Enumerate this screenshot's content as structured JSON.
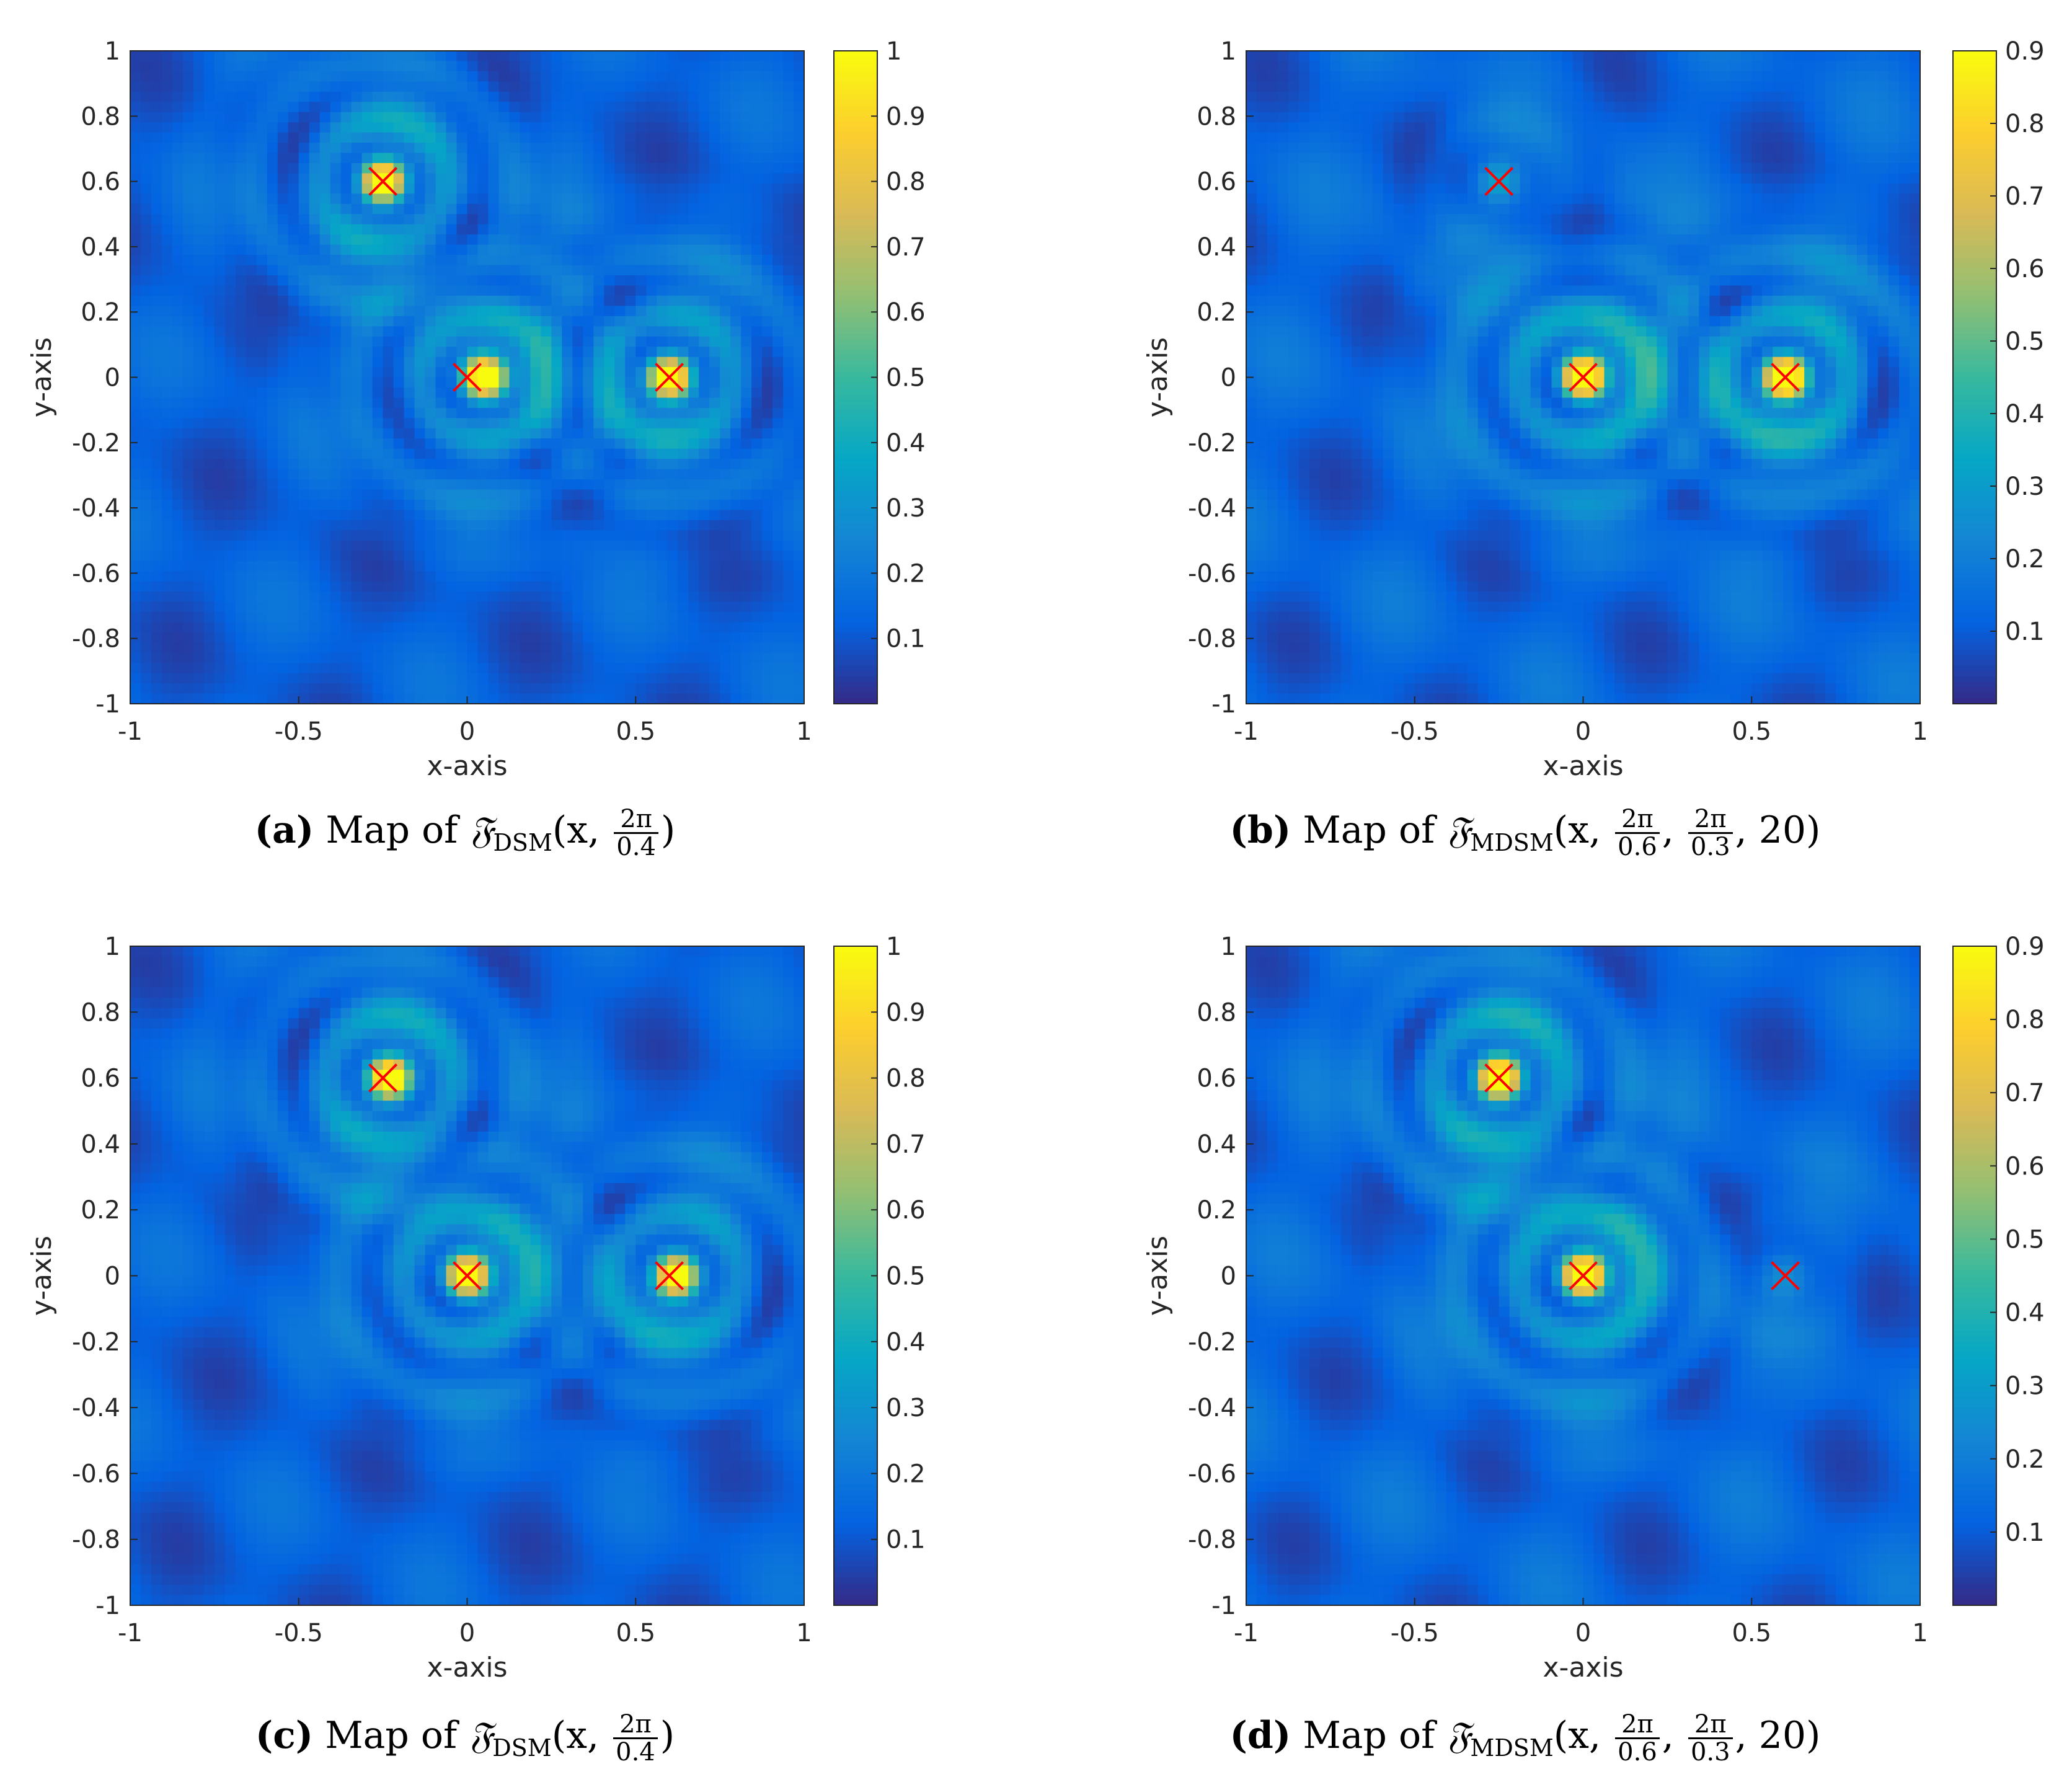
{
  "colorscale": {
    "name": "parula",
    "stops": [
      "#352a87",
      "#0363e1",
      "#1485d4",
      "#06a7c6",
      "#38b99e",
      "#92bf73",
      "#d9ba56",
      "#fcce2e",
      "#f9fb0e"
    ]
  },
  "chart_data": [
    {
      "id": "a",
      "type": "heatmap",
      "xlabel": "x-axis",
      "ylabel": "y-axis",
      "xlim": [
        -1,
        1
      ],
      "ylim": [
        -1,
        1
      ],
      "xticks": [
        "-1",
        "-0.5",
        "0",
        "0.5",
        "1"
      ],
      "yticks": [
        "1",
        "0.8",
        "0.6",
        "0.4",
        "0.2",
        "0",
        "-0.2",
        "-0.4",
        "-0.6",
        "-0.8",
        "-1"
      ],
      "colorbar": {
        "range": [
          0,
          1
        ],
        "ticks": [
          "1",
          "0.9",
          "0.8",
          "0.7",
          "0.6",
          "0.5",
          "0.4",
          "0.3",
          "0.2",
          "0.1"
        ]
      },
      "markers": [
        {
          "x": -0.25,
          "y": 0.6
        },
        {
          "x": 0.0,
          "y": 0.0
        },
        {
          "x": 0.6,
          "y": 0.0
        }
      ],
      "peaks": [
        {
          "x": -0.25,
          "y": 0.6,
          "v": 0.85
        },
        {
          "x": 0.05,
          "y": 0.0,
          "v": 0.85
        },
        {
          "x": 0.6,
          "y": 0.0,
          "v": 0.82
        }
      ],
      "caption": {
        "label": "(a)",
        "text": "Map of",
        "func": "𝔉",
        "sub": "DSM",
        "args_pre": "(x,",
        "frac1": [
          "2π",
          "0.4"
        ],
        "args_post": ")"
      }
    },
    {
      "id": "b",
      "type": "heatmap",
      "xlabel": "x-axis",
      "ylabel": "y-axis",
      "xlim": [
        -1,
        1
      ],
      "ylim": [
        -1,
        1
      ],
      "xticks": [
        "-1",
        "-0.5",
        "0",
        "0.5",
        "1"
      ],
      "yticks": [
        "1",
        "0.8",
        "0.6",
        "0.4",
        "0.2",
        "0",
        "-0.2",
        "-0.4",
        "-0.6",
        "-0.8",
        "-1"
      ],
      "colorbar": {
        "range": [
          0,
          0.9
        ],
        "ticks": [
          "0.9",
          "0.8",
          "0.7",
          "0.6",
          "0.5",
          "0.4",
          "0.3",
          "0.2",
          "0.1"
        ]
      },
      "markers": [
        {
          "x": -0.25,
          "y": 0.6
        },
        {
          "x": 0.0,
          "y": 0.0
        },
        {
          "x": 0.6,
          "y": 0.0
        }
      ],
      "peaks": [
        {
          "x": -0.25,
          "y": 0.6,
          "v": 0.15
        },
        {
          "x": 0.0,
          "y": 0.0,
          "v": 0.85
        },
        {
          "x": 0.6,
          "y": 0.0,
          "v": 0.85
        }
      ],
      "caption": {
        "label": "(b)",
        "text": "Map of",
        "func": "𝔉",
        "sub": "MDSM",
        "args_pre": "(x,",
        "frac1": [
          "2π",
          "0.6"
        ],
        "frac2": [
          "2π",
          "0.3"
        ],
        "args_post": ", 20)"
      }
    },
    {
      "id": "c",
      "type": "heatmap",
      "xlabel": "x-axis",
      "ylabel": "y-axis",
      "xlim": [
        -1,
        1
      ],
      "ylim": [
        -1,
        1
      ],
      "xticks": [
        "-1",
        "-0.5",
        "0",
        "0.5",
        "1"
      ],
      "yticks": [
        "1",
        "0.8",
        "0.6",
        "0.4",
        "0.2",
        "0",
        "-0.2",
        "-0.4",
        "-0.6",
        "-0.8",
        "-1"
      ],
      "colorbar": {
        "range": [
          0,
          1
        ],
        "ticks": [
          "1",
          "0.9",
          "0.8",
          "0.7",
          "0.6",
          "0.5",
          "0.4",
          "0.3",
          "0.2",
          "0.1"
        ]
      },
      "markers": [
        {
          "x": -0.25,
          "y": 0.6
        },
        {
          "x": 0.0,
          "y": 0.0
        },
        {
          "x": 0.6,
          "y": 0.0
        }
      ],
      "peaks": [
        {
          "x": -0.23,
          "y": 0.6,
          "v": 0.85
        },
        {
          "x": 0.0,
          "y": 0.0,
          "v": 0.85
        },
        {
          "x": 0.62,
          "y": 0.0,
          "v": 0.8
        }
      ],
      "caption": {
        "label": "(c)",
        "text": "Map of",
        "func": "𝔉",
        "sub": "DSM",
        "args_pre": "(x,",
        "frac1": [
          "2π",
          "0.4"
        ],
        "args_post": ")"
      }
    },
    {
      "id": "d",
      "type": "heatmap",
      "xlabel": "x-axis",
      "ylabel": "y-axis",
      "xlim": [
        -1,
        1
      ],
      "ylim": [
        -1,
        1
      ],
      "xticks": [
        "-1",
        "-0.5",
        "0",
        "0.5",
        "1"
      ],
      "yticks": [
        "1",
        "0.8",
        "0.6",
        "0.4",
        "0.2",
        "0",
        "-0.2",
        "-0.4",
        "-0.6",
        "-0.8",
        "-1"
      ],
      "colorbar": {
        "range": [
          0,
          0.9
        ],
        "ticks": [
          "0.9",
          "0.8",
          "0.7",
          "0.6",
          "0.5",
          "0.4",
          "0.3",
          "0.2",
          "0.1"
        ]
      },
      "markers": [
        {
          "x": -0.25,
          "y": 0.6
        },
        {
          "x": 0.0,
          "y": 0.0
        },
        {
          "x": 0.6,
          "y": 0.0
        }
      ],
      "peaks": [
        {
          "x": -0.25,
          "y": 0.6,
          "v": 0.8
        },
        {
          "x": 0.0,
          "y": 0.0,
          "v": 0.85
        },
        {
          "x": 0.6,
          "y": 0.0,
          "v": 0.08
        }
      ],
      "caption": {
        "label": "(d)",
        "text": "Map of",
        "func": "𝔉",
        "sub": "MDSM",
        "args_pre": "(x,",
        "frac1": [
          "2π",
          "0.6"
        ],
        "frac2": [
          "2π",
          "0.3"
        ],
        "args_post": ", 20)"
      }
    }
  ]
}
